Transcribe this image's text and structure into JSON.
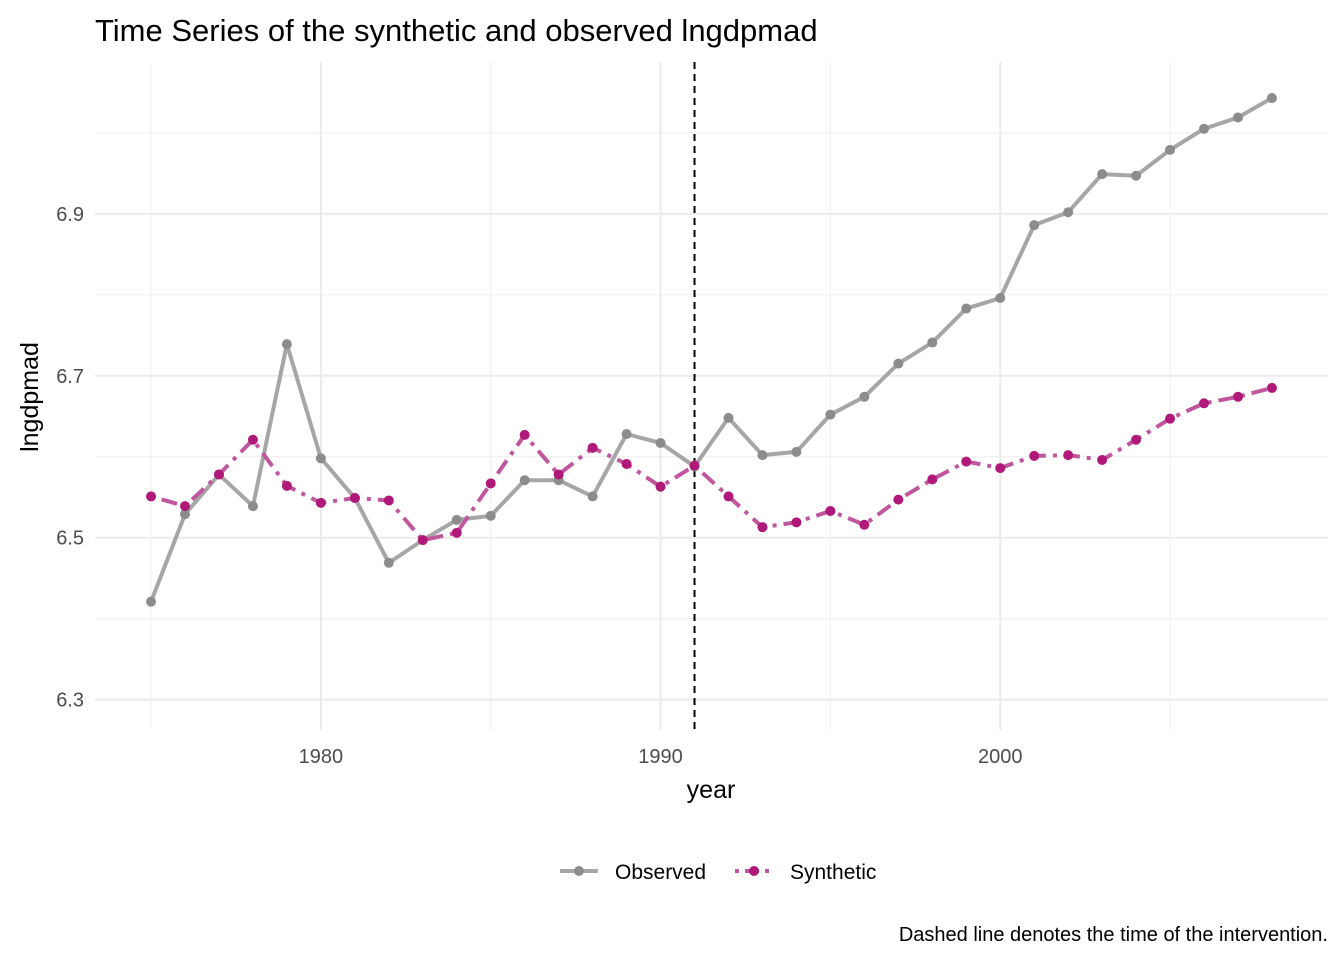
{
  "chart_data": {
    "type": "line",
    "title": "Time Series of the synthetic and observed lngdpmad",
    "xlabel": "year",
    "ylabel": "lngdpmad",
    "caption": "Dashed line denotes the time of the intervention.",
    "xlim": [
      1975,
      2008
    ],
    "ylim": [
      6.3,
      7.05
    ],
    "x_ticks": [
      1980,
      1990,
      2000
    ],
    "x_tick_labels": [
      "1980",
      "1990",
      "2000"
    ],
    "y_ticks": [
      6.3,
      6.5,
      6.7,
      6.9
    ],
    "y_tick_labels": [
      "6.3",
      "6.5",
      "6.7",
      "6.9"
    ],
    "grid": true,
    "legend_position": "bottom",
    "intervention_year": 1991,
    "x": [
      1975,
      1976,
      1977,
      1978,
      1979,
      1980,
      1981,
      1982,
      1983,
      1984,
      1985,
      1986,
      1987,
      1988,
      1989,
      1990,
      1991,
      1992,
      1993,
      1994,
      1995,
      1996,
      1997,
      1998,
      1999,
      2000,
      2001,
      2002,
      2003,
      2004,
      2005,
      2006,
      2007,
      2008
    ],
    "series": [
      {
        "name": "Observed",
        "color": "#8c8c8c",
        "line_color": "#a6a6a6",
        "line_style": "solid",
        "values": [
          6.421,
          6.529,
          6.578,
          6.539,
          6.739,
          6.598,
          6.549,
          6.469,
          6.497,
          6.522,
          6.527,
          6.571,
          6.571,
          6.551,
          6.628,
          6.617,
          6.588,
          6.648,
          6.602,
          6.606,
          6.652,
          6.674,
          6.715,
          6.741,
          6.783,
          6.796,
          6.886,
          6.902,
          6.949,
          6.947,
          6.979,
          7.005,
          7.019,
          7.043
        ]
      },
      {
        "name": "Synthetic",
        "color": "#b0197a",
        "line_color": "#c0569c",
        "line_style": "dashdot",
        "values": [
          6.551,
          6.539,
          6.578,
          6.621,
          6.564,
          6.543,
          6.549,
          6.546,
          6.497,
          6.506,
          6.567,
          6.627,
          6.578,
          6.611,
          6.591,
          6.563,
          6.589,
          6.551,
          6.513,
          6.519,
          6.533,
          6.516,
          6.547,
          6.572,
          6.594,
          6.586,
          6.601,
          6.602,
          6.596,
          6.621,
          6.647,
          6.666,
          6.674,
          6.685
        ]
      }
    ]
  }
}
